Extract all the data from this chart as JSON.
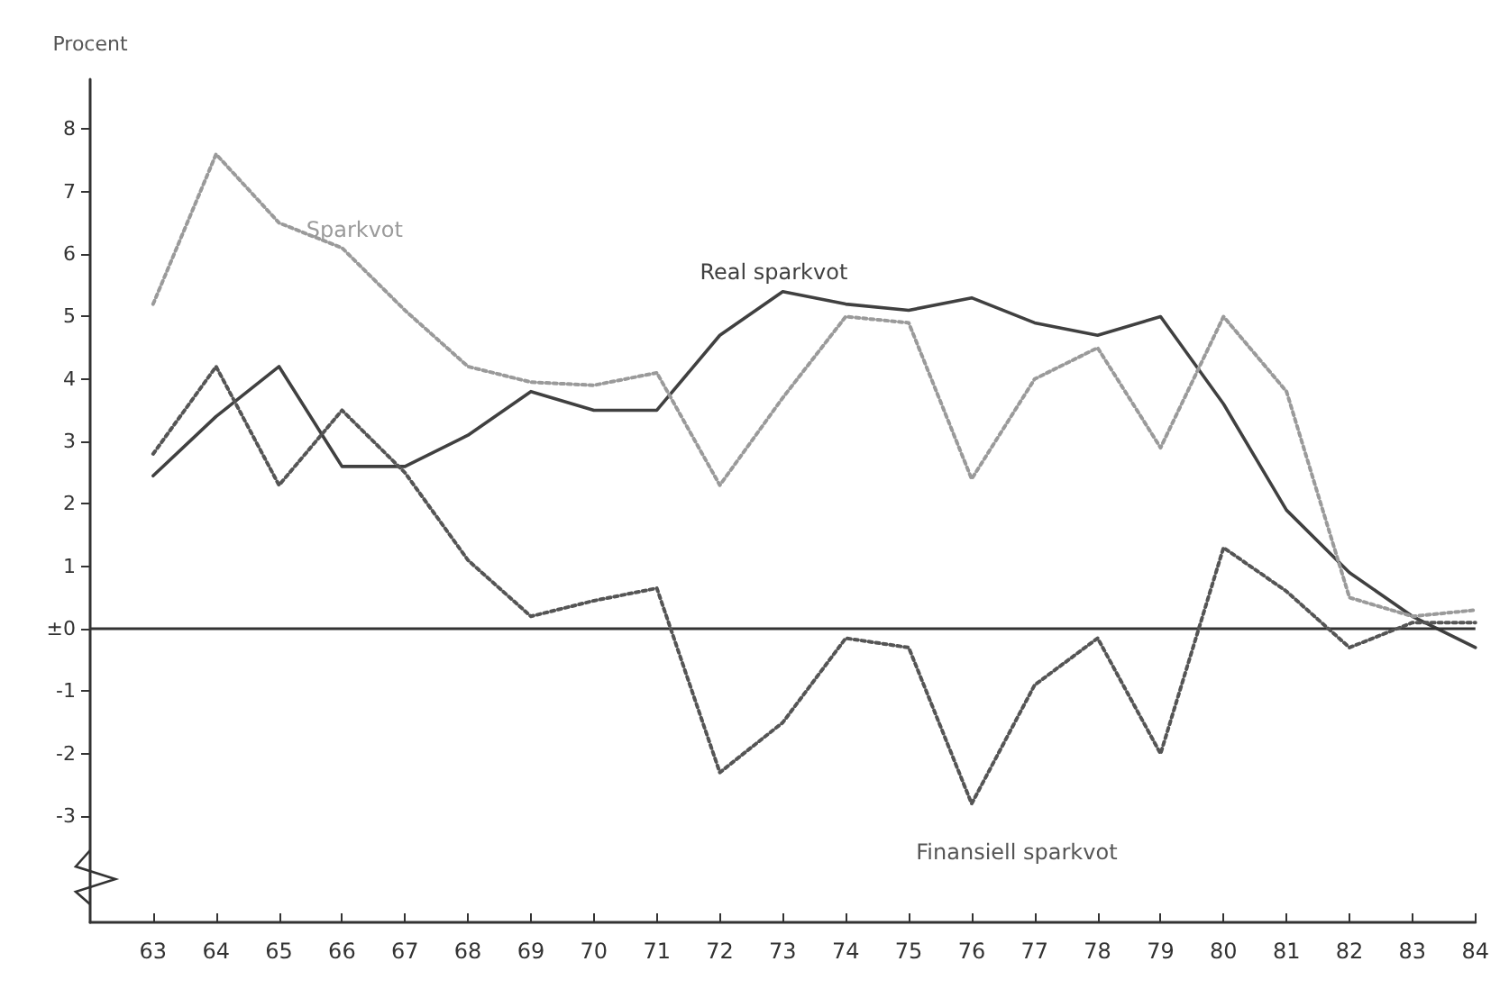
{
  "chart_data": {
    "type": "line",
    "ylabel": "Procent",
    "x": [
      63,
      64,
      65,
      66,
      67,
      68,
      69,
      70,
      71,
      72,
      73,
      74,
      75,
      76,
      77,
      78,
      79,
      80,
      81,
      82,
      83,
      84
    ],
    "series": [
      {
        "name": "Real sparkvot",
        "color": "#404040",
        "line_style": "solid",
        "values": [
          2.45,
          3.4,
          4.2,
          2.6,
          2.6,
          3.1,
          3.8,
          3.5,
          3.5,
          4.7,
          5.4,
          5.2,
          5.1,
          5.3,
          4.9,
          4.7,
          5.0,
          3.6,
          1.9,
          0.9,
          0.2,
          -0.3
        ]
      },
      {
        "name": "Sparkvot",
        "color": "#9a9a9a",
        "line_style": "dotted",
        "values": [
          5.2,
          7.6,
          6.5,
          6.1,
          5.1,
          4.2,
          3.95,
          3.9,
          4.1,
          2.3,
          3.7,
          5.0,
          4.9,
          2.4,
          4.0,
          4.5,
          2.9,
          5.0,
          3.8,
          0.5,
          0.2,
          0.3
        ]
      },
      {
        "name": "Finansiell sparkvot",
        "color": "#555555",
        "line_style": "dotted",
        "values": [
          2.8,
          4.2,
          2.3,
          3.5,
          2.5,
          1.1,
          0.2,
          0.45,
          0.65,
          -2.3,
          -1.5,
          -0.15,
          -0.3,
          -2.8,
          -0.9,
          -0.15,
          -2.0,
          1.3,
          0.6,
          -0.3,
          0.1,
          0.1
        ]
      }
    ],
    "xlim": [
      62,
      84
    ],
    "xticks": [
      63,
      64,
      65,
      66,
      67,
      68,
      69,
      70,
      71,
      72,
      73,
      74,
      75,
      76,
      77,
      78,
      79,
      80,
      81,
      82,
      83,
      84
    ],
    "ylim": [
      -4.7,
      8.8
    ],
    "yticks": [
      -3,
      -2,
      -1,
      {
        "value": 0,
        "label": "±0"
      },
      1,
      2,
      3,
      4,
      5,
      6,
      7,
      8
    ],
    "ref_lines": [
      {
        "axis": "y",
        "value": 0,
        "color": "#333333",
        "line_style": "solid"
      }
    ],
    "marker": "none",
    "grid": false,
    "legend": false
  }
}
